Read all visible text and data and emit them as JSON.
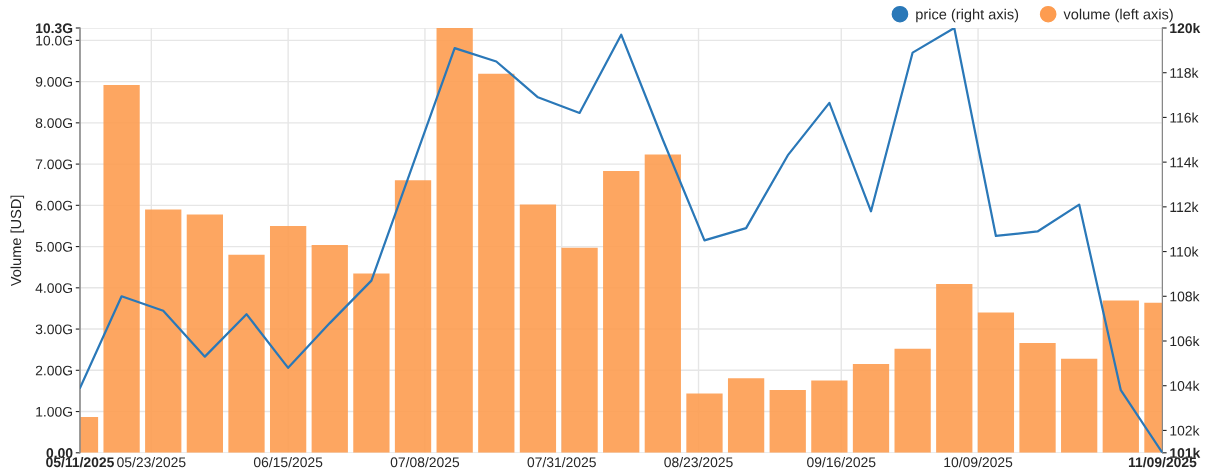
{
  "chart_data": {
    "type": "bar",
    "x": [
      "2025-05-11",
      "2025-05-18",
      "2025-05-25",
      "2025-06-01",
      "2025-06-08",
      "2025-06-15",
      "2025-06-22",
      "2025-06-29",
      "2025-07-06",
      "2025-07-13",
      "2025-07-20",
      "2025-07-27",
      "2025-08-03",
      "2025-08-10",
      "2025-08-17",
      "2025-08-24",
      "2025-08-31",
      "2025-09-07",
      "2025-09-14",
      "2025-09-21",
      "2025-09-28",
      "2025-10-05",
      "2025-10-12",
      "2025-10-19",
      "2025-10-26",
      "2025-11-02",
      "2025-11-09"
    ],
    "series": [
      {
        "name": "price (right axis)",
        "type": "line",
        "axis": "y2",
        "color": "#2a78b8",
        "values": [
          103.9,
          108.0,
          107.35,
          105.3,
          107.2,
          104.8,
          106.8,
          108.7,
          113.9,
          119.1,
          118.5,
          116.9,
          116.2,
          119.7,
          115.0,
          110.5,
          111.05,
          114.3,
          116.65,
          111.8,
          118.9,
          120.0,
          110.7,
          110.9,
          112.1,
          103.8,
          101.0
        ]
      },
      {
        "name": "volume (left axis)",
        "color": "#fd9c50",
        "values": [
          0.87,
          8.92,
          5.9,
          5.78,
          4.8,
          5.5,
          5.04,
          4.35,
          6.61,
          10.3,
          9.19,
          6.02,
          4.97,
          6.83,
          7.23,
          1.44,
          1.81,
          1.52,
          1.75,
          2.15,
          2.52,
          4.09,
          3.4,
          2.66,
          2.28,
          3.69,
          3.64
        ]
      }
    ],
    "ylabel": "Volume [USD]",
    "xlim": [
      "2025-05-11",
      "2025-11-09"
    ],
    "xticks": [
      {
        "value": "2025-05-11",
        "label": "05/11/2025"
      },
      {
        "value": "2025-05-23",
        "label": "05/23/2025"
      },
      {
        "value": "2025-06-15",
        "label": "06/15/2025"
      },
      {
        "value": "2025-07-08",
        "label": "07/08/2025"
      },
      {
        "value": "2025-07-31",
        "label": "07/31/2025"
      },
      {
        "value": "2025-08-23",
        "label": "08/23/2025"
      },
      {
        "value": "2025-09-16",
        "label": "09/16/2025"
      },
      {
        "value": "2025-10-09",
        "label": "10/09/2025"
      },
      {
        "value": "2025-11-09",
        "label": "11/09/2025"
      }
    ],
    "ylim": [
      0,
      10.3
    ],
    "yticks": [
      {
        "value": 0,
        "label": "0.00"
      },
      {
        "value": 1,
        "label": "1.00G"
      },
      {
        "value": 2,
        "label": "2.00G"
      },
      {
        "value": 3,
        "label": "3.00G"
      },
      {
        "value": 4,
        "label": "4.00G"
      },
      {
        "value": 5,
        "label": "5.00G"
      },
      {
        "value": 6,
        "label": "6.00G"
      },
      {
        "value": 7,
        "label": "7.00G"
      },
      {
        "value": 8,
        "label": "8.00G"
      },
      {
        "value": 9,
        "label": "9.00G"
      },
      {
        "value": 10,
        "label": "10.0G"
      },
      {
        "value": 10.3,
        "label": "10.3G"
      }
    ],
    "y2lim": [
      101,
      120
    ],
    "y2ticks": [
      {
        "value": 101,
        "label": "101k"
      },
      {
        "value": 102,
        "label": "102k"
      },
      {
        "value": 104,
        "label": "104k"
      },
      {
        "value": 106,
        "label": "106k"
      },
      {
        "value": 108,
        "label": "108k"
      },
      {
        "value": 110,
        "label": "110k"
      },
      {
        "value": 112,
        "label": "112k"
      },
      {
        "value": 114,
        "label": "114k"
      },
      {
        "value": 116,
        "label": "116k"
      },
      {
        "value": 118,
        "label": "118k"
      },
      {
        "value": 120,
        "label": "120k"
      }
    ],
    "grid": true,
    "legend": "top right"
  }
}
